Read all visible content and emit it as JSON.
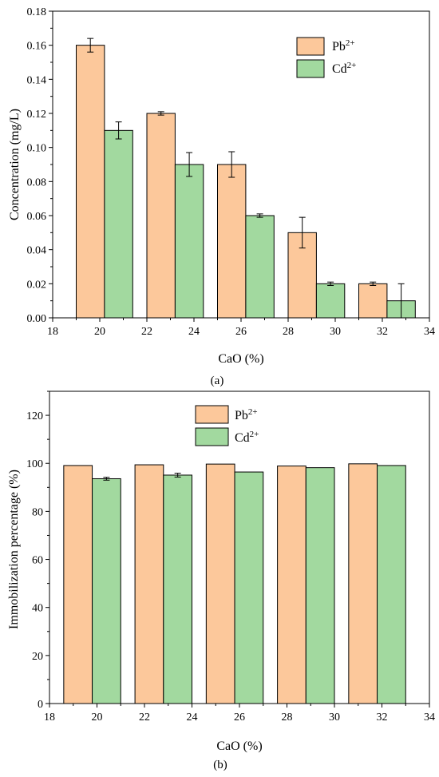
{
  "colors": {
    "pb": "#FCC89B",
    "cd": "#A2D99F",
    "stroke": "#000000"
  },
  "chart_data": [
    {
      "type": "bar",
      "panel_label": "(a)",
      "xlabel": "CaO (%)",
      "ylabel": "Concentration (mg/L)",
      "xlim": [
        18,
        34
      ],
      "ylim": [
        0,
        0.18
      ],
      "x_ticks": [
        "18",
        "20",
        "22",
        "24",
        "26",
        "28",
        "30",
        "32",
        "34"
      ],
      "y_ticks": [
        "0.00",
        "0.02",
        "0.04",
        "0.06",
        "0.08",
        "0.10",
        "0.12",
        "0.14",
        "0.16",
        "0.18"
      ],
      "categories": [
        "20",
        "24",
        "26",
        "28",
        "32"
      ],
      "legend_position": "top-right",
      "series": [
        {
          "name": "Pb",
          "name_sup": "2+",
          "x": [
            19.6,
            22.6,
            25.6,
            28.6,
            31.6
          ],
          "values": [
            0.16,
            0.12,
            0.09,
            0.05,
            0.02
          ],
          "errors": [
            0.004,
            0.001,
            0.0075,
            0.009,
            0.001
          ]
        },
        {
          "name": "Cd",
          "name_sup": "2+",
          "x": [
            20.8,
            23.8,
            26.8,
            29.8,
            32.8
          ],
          "values": [
            0.11,
            0.09,
            0.06,
            0.02,
            0.01
          ],
          "errors": [
            0.005,
            0.007,
            0.001,
            0.001,
            0.01
          ]
        }
      ]
    },
    {
      "type": "bar",
      "panel_label": "(b)",
      "xlabel": "CaO (%)",
      "ylabel": "Immobilization percentage (%)",
      "xlim": [
        18,
        34
      ],
      "ylim": [
        0,
        130
      ],
      "x_ticks": [
        "18",
        "20",
        "22",
        "24",
        "26",
        "28",
        "30",
        "32",
        "34"
      ],
      "y_ticks": [
        "0",
        "20",
        "40",
        "60",
        "80",
        "100",
        "120"
      ],
      "categories": [
        "20",
        "24",
        "26",
        "28",
        "32"
      ],
      "legend_position": "top-center",
      "series": [
        {
          "name": "Pb",
          "name_sup": "2+",
          "x": [
            19.2,
            22.2,
            25.2,
            28.2,
            31.2
          ],
          "values": [
            99.1,
            99.4,
            99.7,
            98.9,
            99.8
          ],
          "errors": [
            0,
            0,
            0,
            0,
            0
          ]
        },
        {
          "name": "Cd",
          "name_sup": "2+",
          "x": [
            20.4,
            23.4,
            26.4,
            29.4,
            32.4
          ],
          "values": [
            93.6,
            95.1,
            96.4,
            98.2,
            99.1
          ],
          "errors": [
            0.6,
            0.8,
            0,
            0,
            0
          ]
        }
      ]
    }
  ]
}
